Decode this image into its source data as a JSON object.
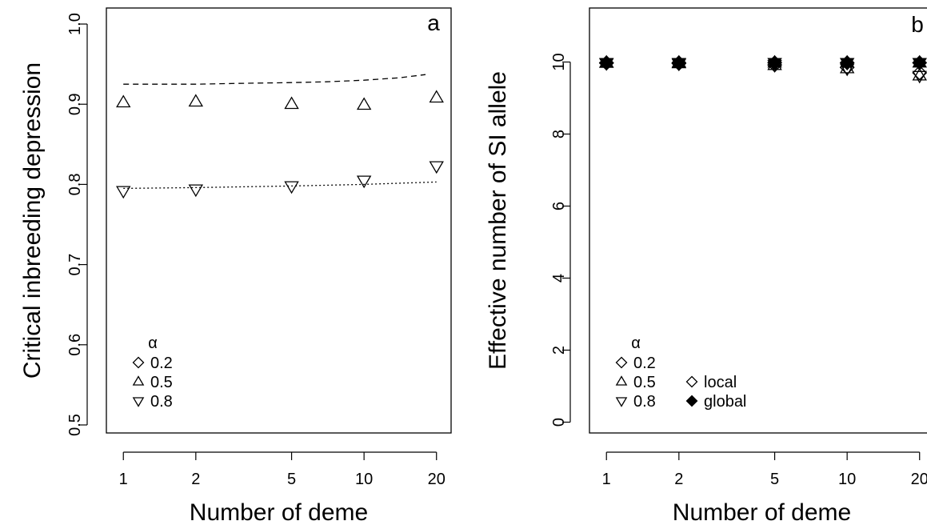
{
  "chart_data": [
    {
      "type": "scatter",
      "panel_label": "a",
      "xlabel": "Number of deme",
      "ylabel": "Critical inbreeding depression",
      "x_scale": "log",
      "x_ticks": [
        1,
        2,
        5,
        10,
        20
      ],
      "x_tick_labels": [
        "1",
        "2",
        "5",
        "10",
        "20"
      ],
      "y_ticks": [
        0.5,
        0.6,
        0.7,
        0.8,
        0.9,
        1.0
      ],
      "y_tick_labels": [
        "0.5",
        "0.6",
        "0.7",
        "0.8",
        "0.9",
        "1.0"
      ],
      "xlim": [
        0.85,
        23
      ],
      "ylim": [
        0.49,
        1.02
      ],
      "grid": false,
      "legend": {
        "title": "α",
        "position": "bottom-left",
        "entries": [
          {
            "marker": "diamond",
            "label": "0.2"
          },
          {
            "marker": "triangle-up",
            "label": "0.5"
          },
          {
            "marker": "triangle-down",
            "label": "0.8"
          }
        ]
      },
      "series": [
        {
          "name": "0.5",
          "marker": "triangle-up",
          "x": [
            1,
            2,
            5,
            10,
            20
          ],
          "y": [
            0.902,
            0.903,
            0.9,
            0.899,
            0.908
          ]
        },
        {
          "name": "0.8",
          "marker": "triangle-down",
          "x": [
            1,
            2,
            5,
            10,
            20
          ],
          "y": [
            0.792,
            0.794,
            0.798,
            0.805,
            0.823
          ]
        }
      ],
      "lines": [
        {
          "style": "dashed",
          "x": [
            1,
            2,
            3,
            5,
            7,
            10,
            14,
            18
          ],
          "y": [
            0.925,
            0.925,
            0.926,
            0.927,
            0.928,
            0.93,
            0.933,
            0.937
          ]
        },
        {
          "style": "dotted",
          "x": [
            1,
            2,
            5,
            10,
            20
          ],
          "y": [
            0.795,
            0.796,
            0.798,
            0.8,
            0.803
          ]
        }
      ]
    },
    {
      "type": "scatter",
      "panel_label": "b",
      "xlabel": "Number of deme",
      "ylabel": "Effective number of SI allele",
      "x_scale": "log",
      "x_ticks": [
        1,
        2,
        5,
        10,
        20
      ],
      "x_tick_labels": [
        "1",
        "2",
        "5",
        "10",
        "20"
      ],
      "y_ticks": [
        0,
        2,
        4,
        6,
        8,
        10
      ],
      "y_tick_labels": [
        "0",
        "2",
        "4",
        "6",
        "8",
        "10"
      ],
      "xlim": [
        0.85,
        23
      ],
      "ylim": [
        -0.3,
        11.5
      ],
      "grid": false,
      "legend": {
        "title": "α",
        "position": "bottom-left",
        "entries": [
          {
            "marker": "diamond",
            "label": "0.2"
          },
          {
            "marker": "triangle-up",
            "label": "0.5"
          },
          {
            "marker": "triangle-down",
            "label": "0.8"
          }
        ],
        "fill_entries": [
          {
            "marker": "diamond-open",
            "label": "local"
          },
          {
            "marker": "diamond-filled",
            "label": "global"
          }
        ]
      },
      "series": [
        {
          "name": "0.2 local",
          "marker": "diamond",
          "filled": false,
          "x": [
            1,
            2,
            5,
            10,
            20
          ],
          "y": [
            9.97,
            9.96,
            9.92,
            9.85,
            9.7
          ]
        },
        {
          "name": "0.5 local",
          "marker": "triangle-up",
          "filled": false,
          "x": [
            1,
            2,
            5,
            10,
            20
          ],
          "y": [
            9.97,
            9.96,
            9.91,
            9.82,
            9.62
          ]
        },
        {
          "name": "0.8 local",
          "marker": "triangle-down",
          "filled": false,
          "x": [
            1,
            2,
            5,
            10,
            20
          ],
          "y": [
            9.97,
            9.96,
            9.92,
            9.82,
            9.62
          ]
        },
        {
          "name": "0.2 global",
          "marker": "diamond",
          "filled": true,
          "x": [
            1,
            2,
            5,
            10,
            20
          ],
          "y": [
            9.98,
            9.98,
            9.98,
            9.98,
            9.98
          ]
        },
        {
          "name": "0.5 global",
          "marker": "triangle-up",
          "filled": true,
          "x": [
            1,
            2,
            5,
            10,
            20
          ],
          "y": [
            9.98,
            9.98,
            9.98,
            9.98,
            9.98
          ]
        },
        {
          "name": "0.8 global",
          "marker": "triangle-down",
          "filled": true,
          "x": [
            1,
            2,
            5,
            10,
            20
          ],
          "y": [
            9.98,
            9.98,
            9.98,
            9.98,
            9.98
          ]
        }
      ]
    }
  ]
}
